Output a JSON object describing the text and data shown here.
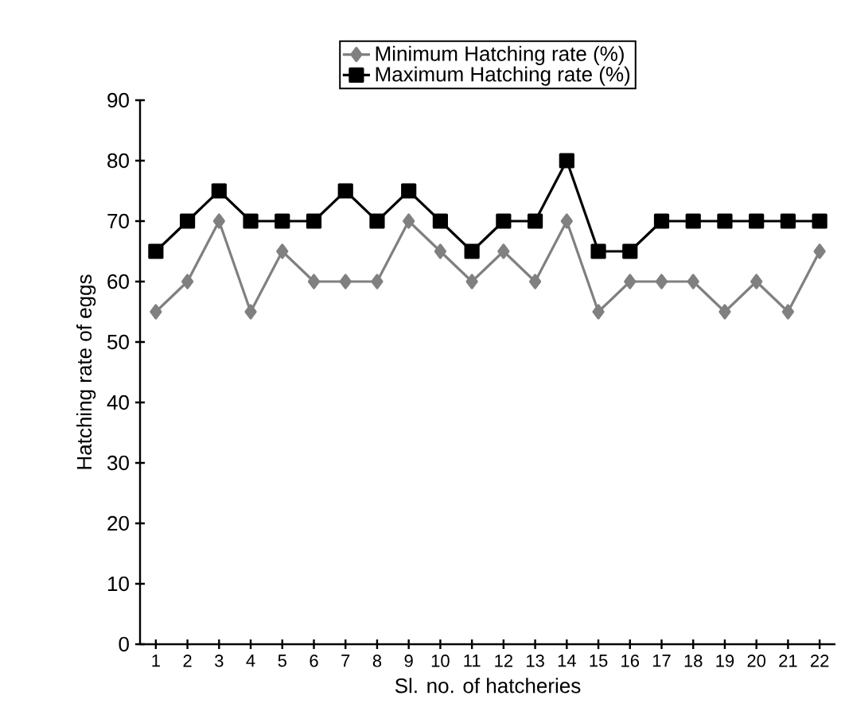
{
  "chart_data": {
    "type": "line",
    "xlabel": "Sl. no. of hatcheries",
    "ylabel": "Hatching rate of eggs",
    "categories": [
      "1",
      "2",
      "3",
      "4",
      "5",
      "6",
      "7",
      "8",
      "9",
      "10",
      "11",
      "12",
      "13",
      "14",
      "15",
      "16",
      "17",
      "18",
      "19",
      "20",
      "21",
      "22"
    ],
    "series": [
      {
        "name": "Minimum Hatching rate (%)",
        "color": "#808080",
        "marker": "diamond",
        "values": [
          55,
          60,
          70,
          55,
          65,
          60,
          60,
          60,
          70,
          65,
          60,
          65,
          60,
          70,
          55,
          60,
          60,
          60,
          55,
          60,
          55,
          65
        ]
      },
      {
        "name": "Maximum Hatching rate (%)",
        "color": "#000000",
        "marker": "square",
        "values": [
          65,
          70,
          75,
          70,
          70,
          70,
          75,
          70,
          75,
          70,
          65,
          70,
          70,
          80,
          65,
          65,
          70,
          70,
          70,
          70,
          70,
          70
        ]
      }
    ],
    "ylim": [
      0,
      90
    ],
    "yticks": [
      0,
      10,
      20,
      30,
      40,
      50,
      60,
      70,
      80,
      90
    ],
    "legend": "top",
    "grid": false,
    "line_style": "solid"
  }
}
